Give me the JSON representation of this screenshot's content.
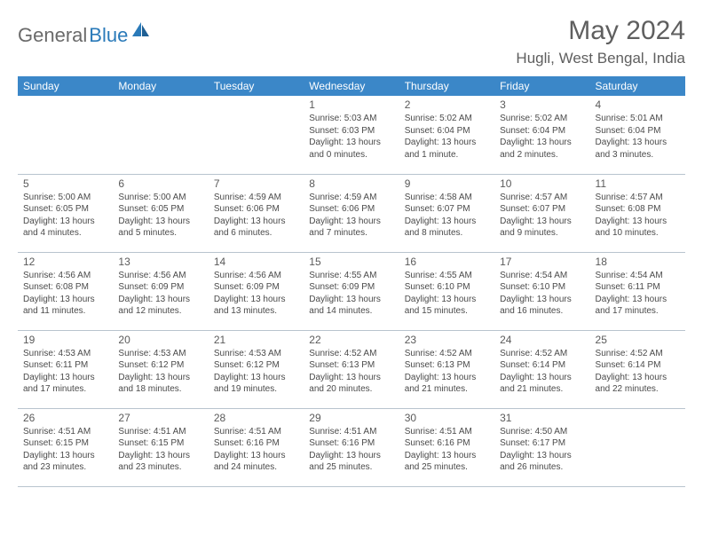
{
  "brand": {
    "part1": "General",
    "part2": "Blue"
  },
  "title": "May 2024",
  "location": "Hugli, West Bengal, India",
  "header_bg": "#3b87c8",
  "header_fg": "#ffffff",
  "text_color": "#4a4a4a",
  "border_color": "#b8c4ce",
  "weekdays": [
    "Sunday",
    "Monday",
    "Tuesday",
    "Wednesday",
    "Thursday",
    "Friday",
    "Saturday"
  ],
  "weeks": [
    [
      {
        "n": "",
        "sr": "",
        "ss": "",
        "dl": ""
      },
      {
        "n": "",
        "sr": "",
        "ss": "",
        "dl": ""
      },
      {
        "n": "",
        "sr": "",
        "ss": "",
        "dl": ""
      },
      {
        "n": "1",
        "sr": "Sunrise: 5:03 AM",
        "ss": "Sunset: 6:03 PM",
        "dl": "Daylight: 13 hours and 0 minutes."
      },
      {
        "n": "2",
        "sr": "Sunrise: 5:02 AM",
        "ss": "Sunset: 6:04 PM",
        "dl": "Daylight: 13 hours and 1 minute."
      },
      {
        "n": "3",
        "sr": "Sunrise: 5:02 AM",
        "ss": "Sunset: 6:04 PM",
        "dl": "Daylight: 13 hours and 2 minutes."
      },
      {
        "n": "4",
        "sr": "Sunrise: 5:01 AM",
        "ss": "Sunset: 6:04 PM",
        "dl": "Daylight: 13 hours and 3 minutes."
      }
    ],
    [
      {
        "n": "5",
        "sr": "Sunrise: 5:00 AM",
        "ss": "Sunset: 6:05 PM",
        "dl": "Daylight: 13 hours and 4 minutes."
      },
      {
        "n": "6",
        "sr": "Sunrise: 5:00 AM",
        "ss": "Sunset: 6:05 PM",
        "dl": "Daylight: 13 hours and 5 minutes."
      },
      {
        "n": "7",
        "sr": "Sunrise: 4:59 AM",
        "ss": "Sunset: 6:06 PM",
        "dl": "Daylight: 13 hours and 6 minutes."
      },
      {
        "n": "8",
        "sr": "Sunrise: 4:59 AM",
        "ss": "Sunset: 6:06 PM",
        "dl": "Daylight: 13 hours and 7 minutes."
      },
      {
        "n": "9",
        "sr": "Sunrise: 4:58 AM",
        "ss": "Sunset: 6:07 PM",
        "dl": "Daylight: 13 hours and 8 minutes."
      },
      {
        "n": "10",
        "sr": "Sunrise: 4:57 AM",
        "ss": "Sunset: 6:07 PM",
        "dl": "Daylight: 13 hours and 9 minutes."
      },
      {
        "n": "11",
        "sr": "Sunrise: 4:57 AM",
        "ss": "Sunset: 6:08 PM",
        "dl": "Daylight: 13 hours and 10 minutes."
      }
    ],
    [
      {
        "n": "12",
        "sr": "Sunrise: 4:56 AM",
        "ss": "Sunset: 6:08 PM",
        "dl": "Daylight: 13 hours and 11 minutes."
      },
      {
        "n": "13",
        "sr": "Sunrise: 4:56 AM",
        "ss": "Sunset: 6:09 PM",
        "dl": "Daylight: 13 hours and 12 minutes."
      },
      {
        "n": "14",
        "sr": "Sunrise: 4:56 AM",
        "ss": "Sunset: 6:09 PM",
        "dl": "Daylight: 13 hours and 13 minutes."
      },
      {
        "n": "15",
        "sr": "Sunrise: 4:55 AM",
        "ss": "Sunset: 6:09 PM",
        "dl": "Daylight: 13 hours and 14 minutes."
      },
      {
        "n": "16",
        "sr": "Sunrise: 4:55 AM",
        "ss": "Sunset: 6:10 PM",
        "dl": "Daylight: 13 hours and 15 minutes."
      },
      {
        "n": "17",
        "sr": "Sunrise: 4:54 AM",
        "ss": "Sunset: 6:10 PM",
        "dl": "Daylight: 13 hours and 16 minutes."
      },
      {
        "n": "18",
        "sr": "Sunrise: 4:54 AM",
        "ss": "Sunset: 6:11 PM",
        "dl": "Daylight: 13 hours and 17 minutes."
      }
    ],
    [
      {
        "n": "19",
        "sr": "Sunrise: 4:53 AM",
        "ss": "Sunset: 6:11 PM",
        "dl": "Daylight: 13 hours and 17 minutes."
      },
      {
        "n": "20",
        "sr": "Sunrise: 4:53 AM",
        "ss": "Sunset: 6:12 PM",
        "dl": "Daylight: 13 hours and 18 minutes."
      },
      {
        "n": "21",
        "sr": "Sunrise: 4:53 AM",
        "ss": "Sunset: 6:12 PM",
        "dl": "Daylight: 13 hours and 19 minutes."
      },
      {
        "n": "22",
        "sr": "Sunrise: 4:52 AM",
        "ss": "Sunset: 6:13 PM",
        "dl": "Daylight: 13 hours and 20 minutes."
      },
      {
        "n": "23",
        "sr": "Sunrise: 4:52 AM",
        "ss": "Sunset: 6:13 PM",
        "dl": "Daylight: 13 hours and 21 minutes."
      },
      {
        "n": "24",
        "sr": "Sunrise: 4:52 AM",
        "ss": "Sunset: 6:14 PM",
        "dl": "Daylight: 13 hours and 21 minutes."
      },
      {
        "n": "25",
        "sr": "Sunrise: 4:52 AM",
        "ss": "Sunset: 6:14 PM",
        "dl": "Daylight: 13 hours and 22 minutes."
      }
    ],
    [
      {
        "n": "26",
        "sr": "Sunrise: 4:51 AM",
        "ss": "Sunset: 6:15 PM",
        "dl": "Daylight: 13 hours and 23 minutes."
      },
      {
        "n": "27",
        "sr": "Sunrise: 4:51 AM",
        "ss": "Sunset: 6:15 PM",
        "dl": "Daylight: 13 hours and 23 minutes."
      },
      {
        "n": "28",
        "sr": "Sunrise: 4:51 AM",
        "ss": "Sunset: 6:16 PM",
        "dl": "Daylight: 13 hours and 24 minutes."
      },
      {
        "n": "29",
        "sr": "Sunrise: 4:51 AM",
        "ss": "Sunset: 6:16 PM",
        "dl": "Daylight: 13 hours and 25 minutes."
      },
      {
        "n": "30",
        "sr": "Sunrise: 4:51 AM",
        "ss": "Sunset: 6:16 PM",
        "dl": "Daylight: 13 hours and 25 minutes."
      },
      {
        "n": "31",
        "sr": "Sunrise: 4:50 AM",
        "ss": "Sunset: 6:17 PM",
        "dl": "Daylight: 13 hours and 26 minutes."
      },
      {
        "n": "",
        "sr": "",
        "ss": "",
        "dl": ""
      }
    ]
  ]
}
